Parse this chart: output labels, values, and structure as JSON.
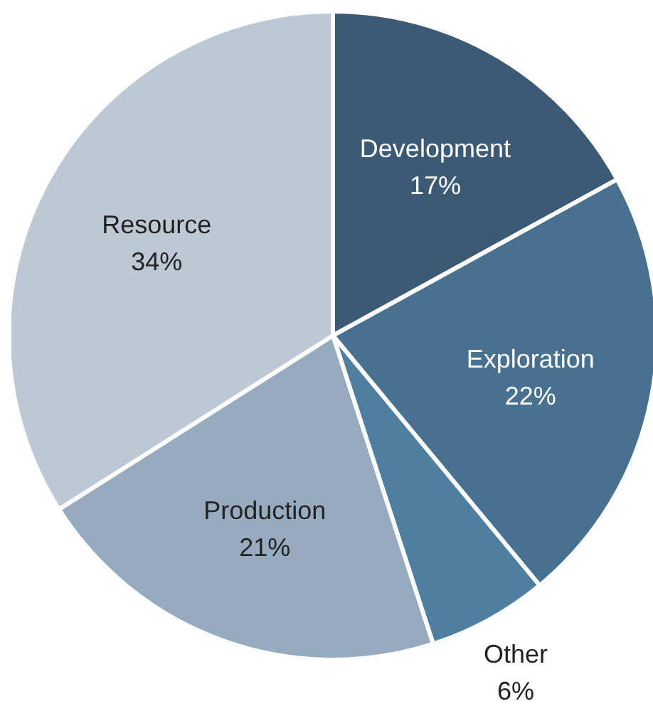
{
  "chart_data": {
    "type": "pie",
    "categories": [
      "Development",
      "Exploration",
      "Other",
      "Production",
      "Resource"
    ],
    "values": [
      17,
      22,
      6,
      21,
      34
    ],
    "value_labels": [
      "17%",
      "22%",
      "6%",
      "21%",
      "34%"
    ],
    "colors": [
      "#3d5a75",
      "#48708f",
      "#4f7fa0",
      "#97abbf",
      "#bcc8d4"
    ]
  }
}
